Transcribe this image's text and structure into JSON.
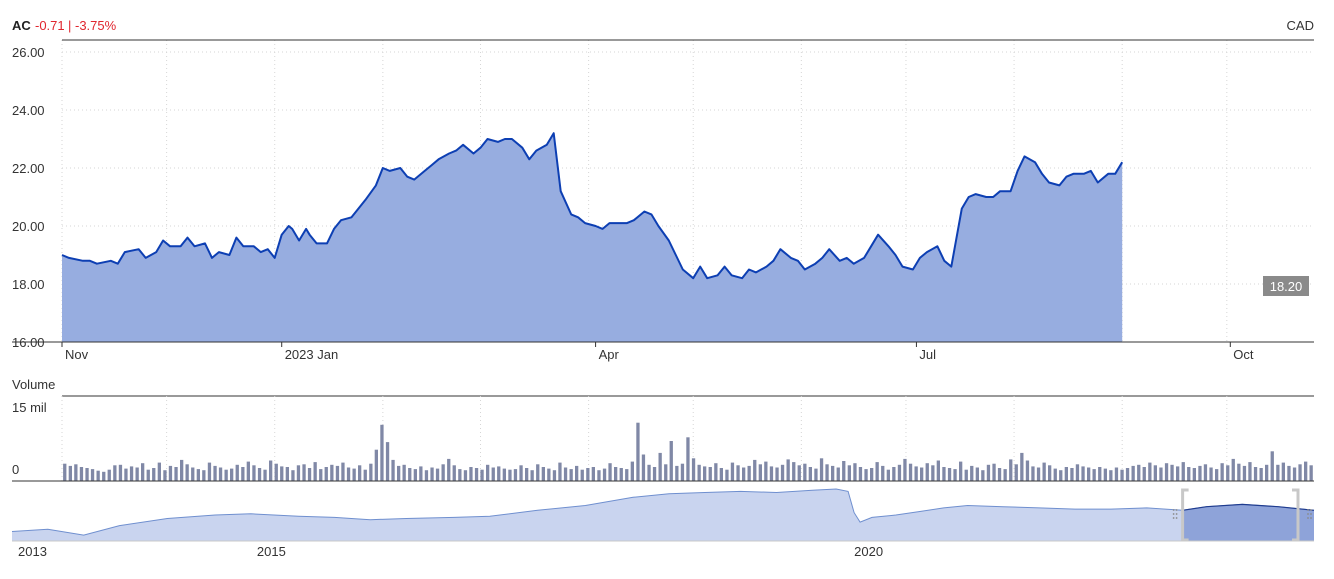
{
  "header": {
    "symbol": "AC",
    "change": "-0.71",
    "separator": "|",
    "change_pct": "-3.75%",
    "currency": "CAD"
  },
  "colors": {
    "line": "#0d3fb3",
    "area": "#97ade0",
    "volume_bar": "#8088a6",
    "negative": "#e0262e",
    "nav_area": "#c9d4ef",
    "nav_line": "#6f8fcf",
    "nav_selected": "#8ea3d9",
    "last_price_bg": "#8a8a8a"
  },
  "chart_data": [
    {
      "type": "area",
      "title": "AC",
      "y_ticks": [
        "26.00",
        "24.00",
        "22.00",
        "20.00",
        "18.00",
        "16.00"
      ],
      "ylim": [
        16,
        26
      ],
      "x_ticks": [
        {
          "label": "Nov",
          "date": "2022-11-01"
        },
        {
          "label": "2023 Jan",
          "date": "2023-01-03"
        },
        {
          "label": "Apr",
          "date": "2023-04-03"
        },
        {
          "label": "Jul",
          "date": "2023-07-04"
        },
        {
          "label": "Oct",
          "date": "2023-10-02"
        }
      ],
      "xlim": [
        "2022-11-01",
        "2023-10-26"
      ],
      "grid": true,
      "last_value_label": "18.20",
      "series": [
        {
          "values": [
            [
              "2022-11-01",
              19.0
            ],
            [
              "2022-11-03",
              18.9
            ],
            [
              "2022-11-07",
              18.8
            ],
            [
              "2022-11-09",
              18.8
            ],
            [
              "2022-11-11",
              18.7
            ],
            [
              "2022-11-15",
              18.8
            ],
            [
              "2022-11-17",
              18.7
            ],
            [
              "2022-11-19",
              19.1
            ],
            [
              "2022-11-23",
              19.2
            ],
            [
              "2022-11-25",
              18.9
            ],
            [
              "2022-11-28",
              19.1
            ],
            [
              "2022-11-30",
              19.5
            ],
            [
              "2022-12-02",
              19.3
            ],
            [
              "2022-12-05",
              19.3
            ],
            [
              "2022-12-07",
              19.6
            ],
            [
              "2022-12-09",
              19.3
            ],
            [
              "2022-12-12",
              19.4
            ],
            [
              "2022-12-14",
              18.9
            ],
            [
              "2022-12-16",
              19.1
            ],
            [
              "2022-12-19",
              19.0
            ],
            [
              "2022-12-21",
              19.6
            ],
            [
              "2022-12-23",
              19.3
            ],
            [
              "2022-12-26",
              19.3
            ],
            [
              "2022-12-28",
              19.1
            ],
            [
              "2022-12-30",
              19.2
            ],
            [
              "2023-01-01",
              18.9
            ],
            [
              "2023-01-03",
              19.7
            ],
            [
              "2023-01-05",
              20.0
            ],
            [
              "2023-01-06",
              19.9
            ],
            [
              "2023-01-08",
              19.5
            ],
            [
              "2023-01-10",
              19.9
            ],
            [
              "2023-01-11",
              19.7
            ],
            [
              "2023-01-13",
              19.4
            ],
            [
              "2023-01-16",
              19.4
            ],
            [
              "2023-01-18",
              19.9
            ],
            [
              "2023-01-20",
              20.2
            ],
            [
              "2023-01-23",
              20.3
            ],
            [
              "2023-01-25",
              20.6
            ],
            [
              "2023-01-27",
              20.9
            ],
            [
              "2023-01-30",
              21.4
            ],
            [
              "2023-02-01",
              22.0
            ],
            [
              "2023-02-03",
              21.9
            ],
            [
              "2023-02-06",
              22.0
            ],
            [
              "2023-02-08",
              21.7
            ],
            [
              "2023-02-10",
              21.6
            ],
            [
              "2023-02-13",
              21.9
            ],
            [
              "2023-02-15",
              22.1
            ],
            [
              "2023-02-17",
              22.3
            ],
            [
              "2023-02-20",
              22.5
            ],
            [
              "2023-02-22",
              22.6
            ],
            [
              "2023-02-24",
              22.8
            ],
            [
              "2023-02-27",
              22.5
            ],
            [
              "2023-03-01",
              22.7
            ],
            [
              "2023-03-03",
              23.0
            ],
            [
              "2023-03-06",
              22.9
            ],
            [
              "2023-03-08",
              23.0
            ],
            [
              "2023-03-10",
              23.0
            ],
            [
              "2023-03-13",
              22.7
            ],
            [
              "2023-03-15",
              22.3
            ],
            [
              "2023-03-17",
              22.6
            ],
            [
              "2023-03-20",
              22.8
            ],
            [
              "2023-03-22",
              23.2
            ],
            [
              "2023-03-24",
              21.2
            ],
            [
              "2023-03-27",
              20.4
            ],
            [
              "2023-03-29",
              20.3
            ],
            [
              "2023-03-31",
              20.1
            ],
            [
              "2023-04-03",
              20.0
            ],
            [
              "2023-04-05",
              19.9
            ],
            [
              "2023-04-07",
              20.1
            ],
            [
              "2023-04-10",
              20.1
            ],
            [
              "2023-04-12",
              20.1
            ],
            [
              "2023-04-14",
              20.2
            ],
            [
              "2023-04-17",
              20.5
            ],
            [
              "2023-04-19",
              20.4
            ],
            [
              "2023-04-21",
              20.0
            ],
            [
              "2023-04-24",
              19.5
            ],
            [
              "2023-04-26",
              19.0
            ],
            [
              "2023-04-28",
              18.5
            ],
            [
              "2023-05-01",
              18.2
            ],
            [
              "2023-05-03",
              18.6
            ],
            [
              "2023-05-05",
              18.2
            ],
            [
              "2023-05-08",
              18.3
            ],
            [
              "2023-05-10",
              18.6
            ],
            [
              "2023-05-12",
              18.3
            ],
            [
              "2023-05-15",
              18.2
            ],
            [
              "2023-05-17",
              18.5
            ],
            [
              "2023-05-19",
              18.4
            ],
            [
              "2023-05-22",
              18.6
            ],
            [
              "2023-05-24",
              18.8
            ],
            [
              "2023-05-26",
              19.2
            ],
            [
              "2023-05-29",
              18.9
            ],
            [
              "2023-05-31",
              18.8
            ],
            [
              "2023-06-02",
              18.5
            ],
            [
              "2023-06-05",
              18.7
            ],
            [
              "2023-06-07",
              18.9
            ],
            [
              "2023-06-09",
              19.2
            ],
            [
              "2023-06-12",
              18.8
            ],
            [
              "2023-06-14",
              18.9
            ],
            [
              "2023-06-16",
              18.7
            ],
            [
              "2023-06-19",
              18.9
            ],
            [
              "2023-06-21",
              19.3
            ],
            [
              "2023-06-23",
              19.7
            ],
            [
              "2023-06-26",
              19.3
            ],
            [
              "2023-06-28",
              19.0
            ],
            [
              "2023-06-30",
              18.6
            ],
            [
              "2023-07-03",
              18.5
            ],
            [
              "2023-07-05",
              18.9
            ],
            [
              "2023-07-07",
              19.1
            ],
            [
              "2023-07-10",
              19.3
            ],
            [
              "2023-07-12",
              18.8
            ],
            [
              "2023-07-14",
              18.6
            ],
            [
              "2023-07-17",
              20.6
            ],
            [
              "2023-07-19",
              21.0
            ],
            [
              "2023-07-21",
              21.1
            ],
            [
              "2023-07-24",
              21.0
            ],
            [
              "2023-07-26",
              21.0
            ],
            [
              "2023-07-28",
              21.2
            ],
            [
              "2023-07-31",
              21.2
            ],
            [
              "2023-08-02",
              21.9
            ],
            [
              "2023-08-04",
              22.4
            ],
            [
              "2023-08-07",
              22.2
            ],
            [
              "2023-08-09",
              21.8
            ],
            [
              "2023-08-11",
              21.5
            ],
            [
              "2023-08-14",
              21.4
            ],
            [
              "2023-08-16",
              21.7
            ],
            [
              "2023-08-18",
              21.8
            ],
            [
              "2023-08-21",
              21.8
            ],
            [
              "2023-08-23",
              21.9
            ],
            [
              "2023-08-25",
              21.5
            ],
            [
              "2023-08-28",
              21.8
            ],
            [
              "2023-08-30",
              21.8
            ],
            [
              "2023-09-01",
              22.2
            ]
          ]
        }
      ]
    },
    {
      "type": "bar",
      "title": "Volume",
      "y_ticks": [
        "15 mil",
        "0"
      ],
      "ylim": [
        0,
        15
      ],
      "y_unit": "mil",
      "values": [
        3.2,
        2.8,
        3.1,
        2.6,
        2.4,
        2.2,
        1.9,
        1.7,
        2.1,
        2.9,
        3.0,
        2.3,
        2.7,
        2.5,
        3.3,
        2.1,
        2.4,
        3.4,
        2.0,
        2.8,
        2.6,
        3.9,
        3.1,
        2.5,
        2.2,
        2.0,
        3.4,
        2.8,
        2.5,
        2.1,
        2.3,
        3.0,
        2.6,
        3.6,
        2.9,
        2.4,
        2.1,
        3.8,
        3.2,
        2.7,
        2.6,
        2.0,
        2.9,
        3.1,
        2.4,
        3.5,
        2.2,
        2.6,
        3.0,
        2.8,
        3.4,
        2.5,
        2.3,
        2.9,
        2.1,
        3.2,
        5.8,
        10.4,
        7.2,
        3.9,
        2.8,
        3.0,
        2.4,
        2.2,
        2.7,
        2.0,
        2.5,
        2.3,
        3.1,
        4.1,
        2.9,
        2.2,
        2.0,
        2.6,
        2.4,
        2.1,
        3.0,
        2.5,
        2.7,
        2.3,
        2.1,
        2.2,
        2.9,
        2.4,
        2.0,
        3.1,
        2.6,
        2.3,
        2.0,
        3.4,
        2.5,
        2.2,
        2.8,
        2.1,
        2.4,
        2.6,
        2.0,
        2.3,
        3.3,
        2.6,
        2.4,
        2.2,
        3.6,
        10.8,
        4.9,
        3.0,
        2.6,
        5.2,
        3.1,
        7.4,
        2.8,
        3.2,
        8.1,
        4.2,
        3.0,
        2.7,
        2.6,
        3.3,
        2.4,
        2.1,
        3.4,
        2.9,
        2.5,
        2.8,
        3.9,
        3.1,
        3.6,
        2.7,
        2.5,
        3.0,
        4.0,
        3.5,
        2.9,
        3.2,
        2.6,
        2.3,
        4.2,
        3.1,
        2.8,
        2.5,
        3.7,
        2.9,
        3.3,
        2.6,
        2.2,
        2.4,
        3.5,
        2.8,
        2.1,
        2.6,
        3.0,
        4.1,
        3.2,
        2.7,
        2.5,
        3.3,
        2.9,
        3.8,
        2.6,
        2.4,
        2.2,
        3.6,
        2.1,
        2.8,
        2.5,
        2.0,
        3.0,
        3.2,
        2.4,
        2.2,
        4.0,
        3.1,
        5.2,
        3.8,
        2.7,
        2.5,
        3.4,
        2.9,
        2.3,
        2.0,
        2.6,
        2.4,
        3.1,
        2.7,
        2.5,
        2.2,
        2.6,
        2.3,
        2.0,
        2.5,
        2.1,
        2.4,
        2.8,
        3.0,
        2.6,
        3.4,
        2.9,
        2.5,
        3.3,
        3.0,
        2.7,
        3.5,
        2.6,
        2.4,
        2.8,
        3.1,
        2.5,
        2.2,
        3.3,
        2.9,
        4.1,
        3.2,
        2.8,
        3.5,
        2.6,
        2.4,
        3.0,
        5.5,
        3.0,
        3.4,
        2.8,
        2.5,
        3.1,
        3.6,
        2.9
      ]
    },
    {
      "type": "area",
      "title": "",
      "x_ticks": [
        {
          "label": "2013",
          "year": 2013.0
        },
        {
          "label": "2015",
          "year": 2015.0
        },
        {
          "label": "2020",
          "year": 2020.0
        }
      ],
      "xlim": [
        2013.0,
        2023.9
      ],
      "ylim": [
        0,
        60
      ],
      "selected_range": [
        2022.8,
        2023.9
      ],
      "values": [
        [
          2013.0,
          4.0
        ],
        [
          2013.3,
          5.0
        ],
        [
          2013.6,
          2.5
        ],
        [
          2013.9,
          6.5
        ],
        [
          2014.3,
          9.5
        ],
        [
          2014.7,
          11.0
        ],
        [
          2015.0,
          11.5
        ],
        [
          2015.4,
          10.5
        ],
        [
          2015.7,
          10.0
        ],
        [
          2016.0,
          9.0
        ],
        [
          2016.3,
          9.5
        ],
        [
          2016.7,
          10.0
        ],
        [
          2017.0,
          10.5
        ],
        [
          2017.4,
          13.0
        ],
        [
          2017.8,
          15.0
        ],
        [
          2018.2,
          18.5
        ],
        [
          2018.5,
          20.0
        ],
        [
          2018.8,
          20.5
        ],
        [
          2019.1,
          21.0
        ],
        [
          2019.4,
          20.5
        ],
        [
          2019.7,
          21.5
        ],
        [
          2019.9,
          22.0
        ],
        [
          2020.0,
          21.0
        ],
        [
          2020.05,
          12.0
        ],
        [
          2020.1,
          8.0
        ],
        [
          2020.2,
          10.0
        ],
        [
          2020.4,
          11.0
        ],
        [
          2020.6,
          12.5
        ],
        [
          2020.8,
          14.0
        ],
        [
          2021.0,
          15.0
        ],
        [
          2021.3,
          14.5
        ],
        [
          2021.6,
          14.0
        ],
        [
          2021.9,
          13.5
        ],
        [
          2022.2,
          13.5
        ],
        [
          2022.5,
          14.0
        ],
        [
          2022.8,
          13.0
        ],
        [
          2023.0,
          14.5
        ],
        [
          2023.3,
          15.5
        ],
        [
          2023.6,
          14.5
        ],
        [
          2023.9,
          13.0
        ]
      ]
    }
  ]
}
